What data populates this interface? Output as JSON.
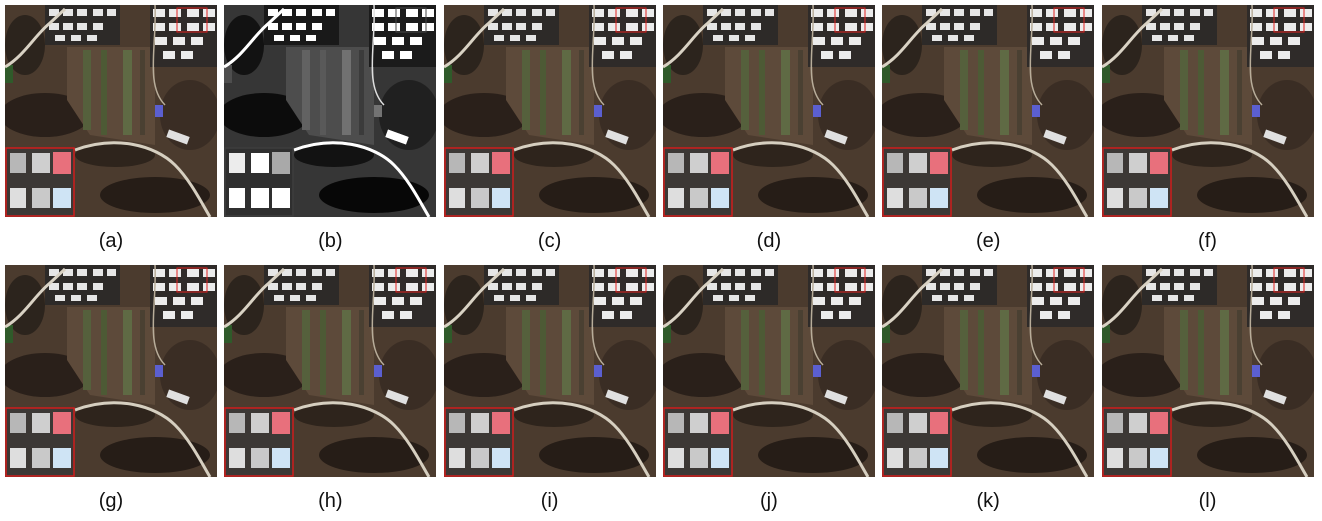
{
  "panels": [
    {
      "label": "(a)"
    },
    {
      "label": "(b)"
    },
    {
      "label": "(c)"
    },
    {
      "label": "(d)"
    },
    {
      "label": "(e)"
    },
    {
      "label": "(f)"
    },
    {
      "label": "(g)"
    },
    {
      "label": "(h)"
    },
    {
      "label": "(i)"
    },
    {
      "label": "(j)"
    },
    {
      "label": "(k)"
    },
    {
      "label": "(l)"
    }
  ]
}
